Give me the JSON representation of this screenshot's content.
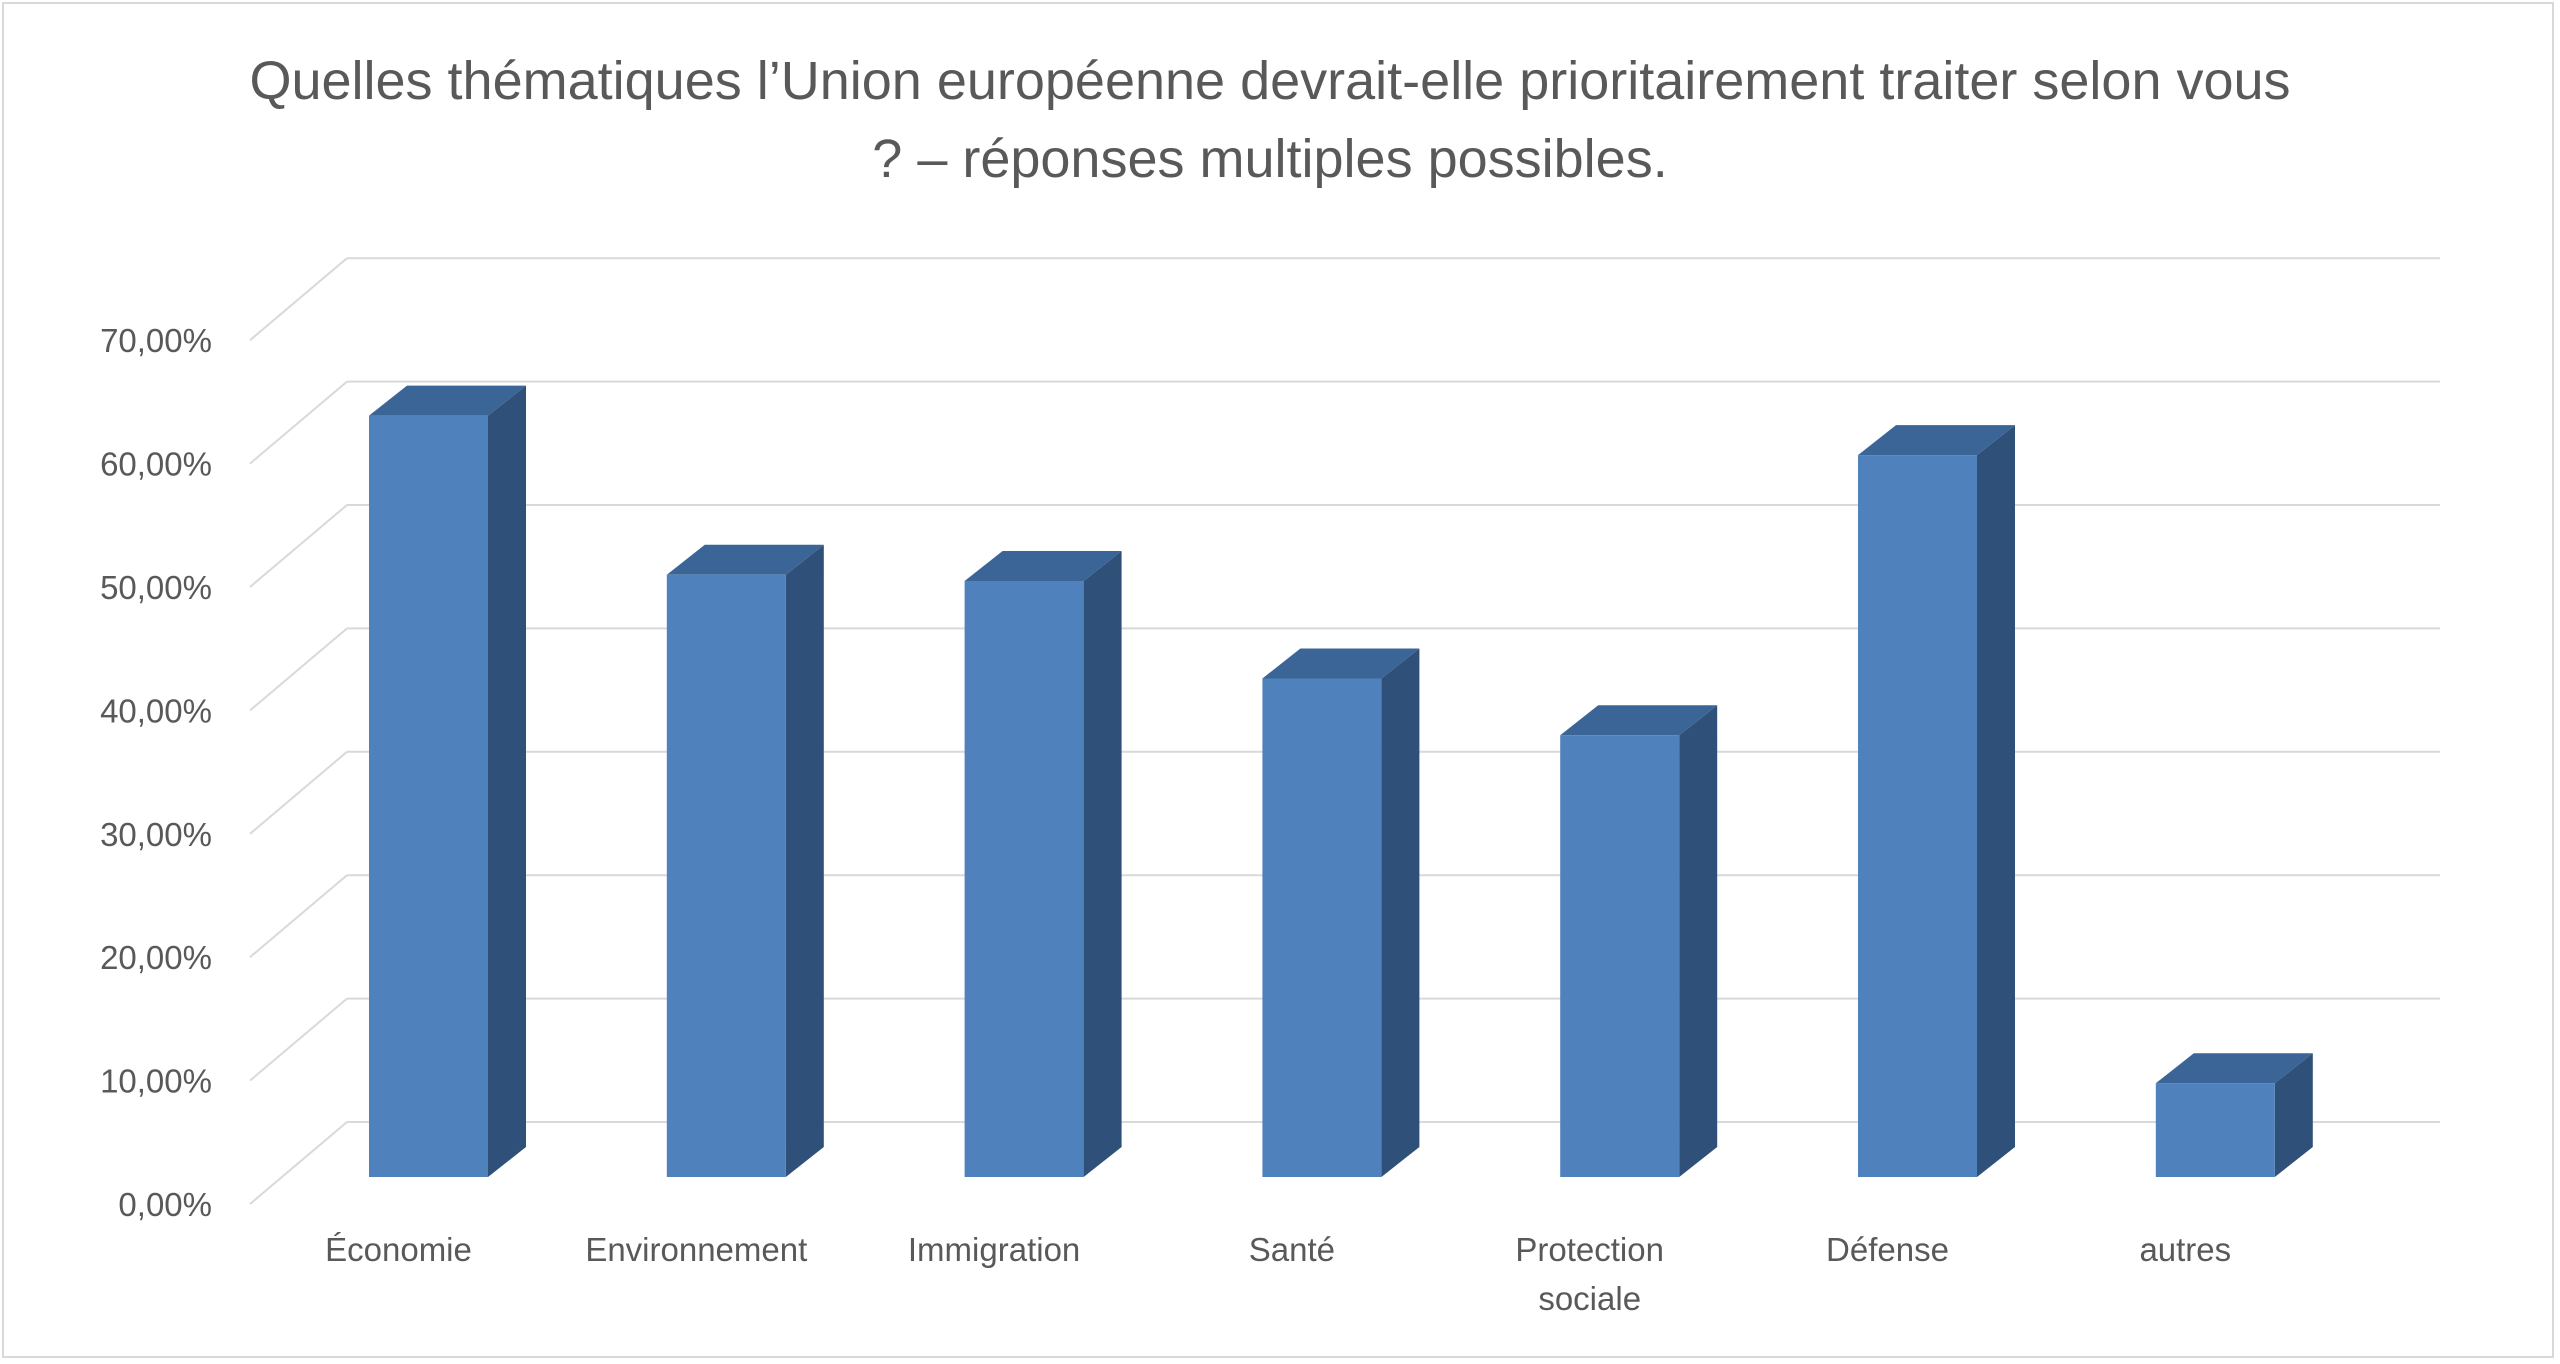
{
  "chart_data": {
    "type": "bar",
    "title": "Quelles thématiques l’Union européenne devrait-elle prioritairement traiter selon vous ? – réponses multiples possibles.",
    "categories": [
      [
        "Économie"
      ],
      [
        "Environnement"
      ],
      [
        "Immigration"
      ],
      [
        "Santé"
      ],
      [
        "Protection",
        "sociale"
      ],
      [
        "Défense"
      ],
      [
        "autres"
      ]
    ],
    "values": [
      61.7,
      48.8,
      48.3,
      40.4,
      35.8,
      58.5,
      7.6
    ],
    "ylim": [
      0,
      70
    ],
    "ytick_values": [
      0,
      10,
      20,
      30,
      40,
      50,
      60,
      70
    ],
    "ytick_labels": [
      "0,00%",
      "10,00%",
      "20,00%",
      "30,00%",
      "40,00%",
      "50,00%",
      "60,00%",
      "70,00%"
    ],
    "xlabel": "",
    "ylabel": "",
    "grid": true,
    "legend": "none",
    "style": "3d-column",
    "colors": {
      "front": "#4f81bd",
      "side": "#2f5078",
      "top": "#3b6596",
      "grid": "#d9d9d9",
      "text": "#595959"
    }
  }
}
